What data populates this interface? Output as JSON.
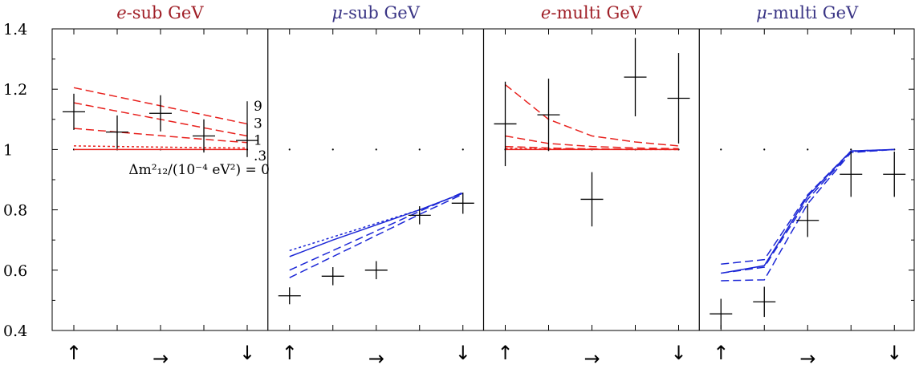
{
  "chart_data": {
    "type": "line",
    "ylim": [
      0.4,
      1.4
    ],
    "yticks": [
      0.4,
      0.6,
      0.8,
      1.0,
      1.2,
      1.4
    ],
    "ytick_labels": [
      "0.4",
      "0.6",
      "0.8",
      "1",
      "1.2",
      "1.4"
    ],
    "x_direction_labels": [
      "↑",
      "→",
      "↓"
    ],
    "reference_line": 1.0,
    "colors": {
      "e": "#e8211d",
      "mu": "#1c27d6",
      "title_e": "#a02028",
      "title_mu": "#3a3585",
      "data": "#000000"
    },
    "panels": [
      {
        "title_prefix": "e",
        "title_rest": "-sub GeV",
        "color": "e",
        "data": [
          {
            "x": 1,
            "y": 1.125,
            "err": 0.06
          },
          {
            "x": 2,
            "y": 1.058,
            "err": 0.055
          },
          {
            "x": 3,
            "y": 1.12,
            "err": 0.06
          },
          {
            "x": 4,
            "y": 1.045,
            "err": 0.055
          },
          {
            "x": 5,
            "y": 1.03,
            "err": 0.055
          }
        ],
        "curves": [
          {
            "label": "9",
            "style": "dash",
            "values": [
              1.205,
              1.175,
              1.145,
              1.115,
              1.085
            ]
          },
          {
            "label": "3",
            "style": "dash",
            "values": [
              1.155,
              1.127,
              1.1,
              1.072,
              1.045
            ]
          },
          {
            "label": "1",
            "style": "dash",
            "values": [
              1.07,
              1.058,
              1.046,
              1.034,
              1.023
            ]
          },
          {
            "label": ".3",
            "style": "dot",
            "values": [
              1.012,
              1.01,
              1.008,
              1.006,
              1.005
            ]
          },
          {
            "label": "0",
            "style": "solid",
            "values": [
              1.0,
              1.0,
              1.0,
              1.0,
              1.0
            ]
          }
        ],
        "annotation": {
          "labels": [
            "9",
            "3",
            "1",
            ".3"
          ],
          "formula": "Δm²₁₂/(10⁻⁴ eV²) = 0"
        }
      },
      {
        "title_prefix": "μ",
        "title_rest": "-sub GeV",
        "color": "mu",
        "data": [
          {
            "x": 1,
            "y": 0.515,
            "err": 0.028
          },
          {
            "x": 2,
            "y": 0.58,
            "err": 0.03
          },
          {
            "x": 3,
            "y": 0.6,
            "err": 0.03
          },
          {
            "x": 4,
            "y": 0.782,
            "err": 0.03
          },
          {
            "x": 5,
            "y": 0.822,
            "err": 0.035
          }
        ],
        "curves": [
          {
            "label": "dot",
            "style": "dot",
            "values": [
              0.665,
              0.71,
              0.755,
              0.8,
              0.855
            ]
          },
          {
            "label": "solid",
            "style": "solid",
            "values": [
              0.645,
              0.7,
              0.75,
              0.8,
              0.855
            ]
          },
          {
            "label": "dash1",
            "style": "dash",
            "values": [
              0.6,
              0.665,
              0.73,
              0.795,
              0.858
            ]
          },
          {
            "label": "dash2",
            "style": "dash",
            "values": [
              0.575,
              0.645,
              0.715,
              0.785,
              0.852
            ]
          }
        ]
      },
      {
        "title_prefix": "e",
        "title_rest": "-multi GeV",
        "color": "e",
        "data": [
          {
            "x": 1,
            "y": 1.085,
            "err": 0.14
          },
          {
            "x": 2,
            "y": 1.115,
            "err": 0.12
          },
          {
            "x": 3,
            "y": 0.835,
            "err": 0.09
          },
          {
            "x": 4,
            "y": 1.24,
            "err": 0.13
          },
          {
            "x": 5,
            "y": 1.17,
            "err": 0.15
          }
        ],
        "curves": [
          {
            "label": "9",
            "style": "dash",
            "values": [
              1.215,
              1.1,
              1.045,
              1.025,
              1.012
            ]
          },
          {
            "label": "3",
            "style": "dash",
            "values": [
              1.045,
              1.02,
              1.01,
              1.005,
              1.003
            ]
          },
          {
            "label": "1",
            "style": "dash",
            "values": [
              1.01,
              1.005,
              1.002,
              1.001,
              1.0
            ]
          },
          {
            "label": ".3",
            "style": "dot",
            "values": [
              1.004,
              1.002,
              1.001,
              1.0,
              1.0
            ]
          },
          {
            "label": "0",
            "style": "solid",
            "values": [
              1.0,
              1.0,
              1.0,
              1.0,
              1.0
            ]
          }
        ]
      },
      {
        "title_prefix": "μ",
        "title_rest": "-multi GeV",
        "color": "mu",
        "data": [
          {
            "x": 1,
            "y": 0.455,
            "err": 0.05
          },
          {
            "x": 2,
            "y": 0.495,
            "err": 0.05
          },
          {
            "x": 3,
            "y": 0.765,
            "err": 0.055
          },
          {
            "x": 4,
            "y": 0.918,
            "err": 0.075
          },
          {
            "x": 5,
            "y": 0.918,
            "err": 0.075
          }
        ],
        "curves": [
          {
            "label": "solid",
            "style": "solid",
            "values": [
              0.59,
              0.615,
              0.845,
              0.995,
              1.0
            ]
          },
          {
            "label": "dash1",
            "style": "dash",
            "values": [
              0.62,
              0.635,
              0.85,
              0.995,
              1.0
            ]
          },
          {
            "label": "dash2",
            "style": "dash",
            "values": [
              0.59,
              0.61,
              0.835,
              0.993,
              1.0
            ]
          },
          {
            "label": "dash3",
            "style": "dash",
            "values": [
              0.565,
              0.568,
              0.82,
              0.99,
              1.0
            ]
          }
        ]
      }
    ]
  }
}
